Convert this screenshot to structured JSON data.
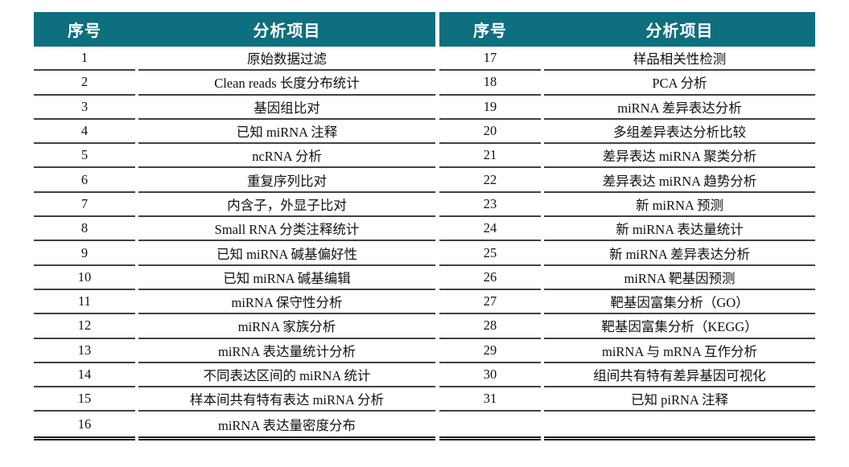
{
  "table": {
    "left_header": {
      "no": "序号",
      "item": "分析项目"
    },
    "right_header": {
      "no": "序号",
      "item": "分析项目"
    }
  },
  "colors": {
    "header_bg": "#0e6f7e",
    "header_text": "#ffffff",
    "row_text": "#111111",
    "row_separator": "#414141",
    "bottom_rule": "#1a1a1a"
  },
  "rows": [
    {
      "no_left": "1",
      "item_left": "原始数据过滤",
      "no_right": "17",
      "item_right": "样品相关性检测"
    },
    {
      "no_left": "2",
      "item_left": "Clean reads 长度分布统计",
      "no_right": "18",
      "item_right": "PCA 分析"
    },
    {
      "no_left": "3",
      "item_left": "基因组比对",
      "no_right": "19",
      "item_right": "miRNA 差异表达分析"
    },
    {
      "no_left": "4",
      "item_left": "已知 miRNA 注释",
      "no_right": "20",
      "item_right": "多组差异表达分析比较"
    },
    {
      "no_left": "5",
      "item_left": "ncRNA 分析",
      "no_right": "21",
      "item_right": "差异表达 miRNA 聚类分析"
    },
    {
      "no_left": "6",
      "item_left": "重复序列比对",
      "no_right": "22",
      "item_right": "差异表达 miRNA 趋势分析"
    },
    {
      "no_left": "7",
      "item_left": "内含子，外显子比对",
      "no_right": "23",
      "item_right": "新 miRNA 预测"
    },
    {
      "no_left": "8",
      "item_left": "Small RNA 分类注释统计",
      "no_right": "24",
      "item_right": "新 miRNA 表达量统计"
    },
    {
      "no_left": "9",
      "item_left": "已知 miRNA 碱基偏好性",
      "no_right": "25",
      "item_right": "新 miRNA 差异表达分析"
    },
    {
      "no_left": "10",
      "item_left": "已知 miRNA 碱基编辑",
      "no_right": "26",
      "item_right": "miRNA 靶基因预测"
    },
    {
      "no_left": "11",
      "item_left": "miRNA 保守性分析",
      "no_right": "27",
      "item_right": "靶基因富集分析（GO）"
    },
    {
      "no_left": "12",
      "item_left": "miRNA 家族分析",
      "no_right": "28",
      "item_right": "靶基因富集分析（KEGG）"
    },
    {
      "no_left": "13",
      "item_left": "miRNA 表达量统计分析",
      "no_right": "29",
      "item_right": "miRNA 与 mRNA 互作分析"
    },
    {
      "no_left": "14",
      "item_left": "不同表达区间的 miRNA 统计",
      "no_right": "30",
      "item_right": "组间共有特有差异基因可视化"
    },
    {
      "no_left": "15",
      "item_left": "样本间共有特有表达 miRNA 分析",
      "no_right": "31",
      "item_right": "已知 piRNA 注释"
    },
    {
      "no_left": "16",
      "item_left": "miRNA 表达量密度分布",
      "no_right": "",
      "item_right": ""
    }
  ]
}
